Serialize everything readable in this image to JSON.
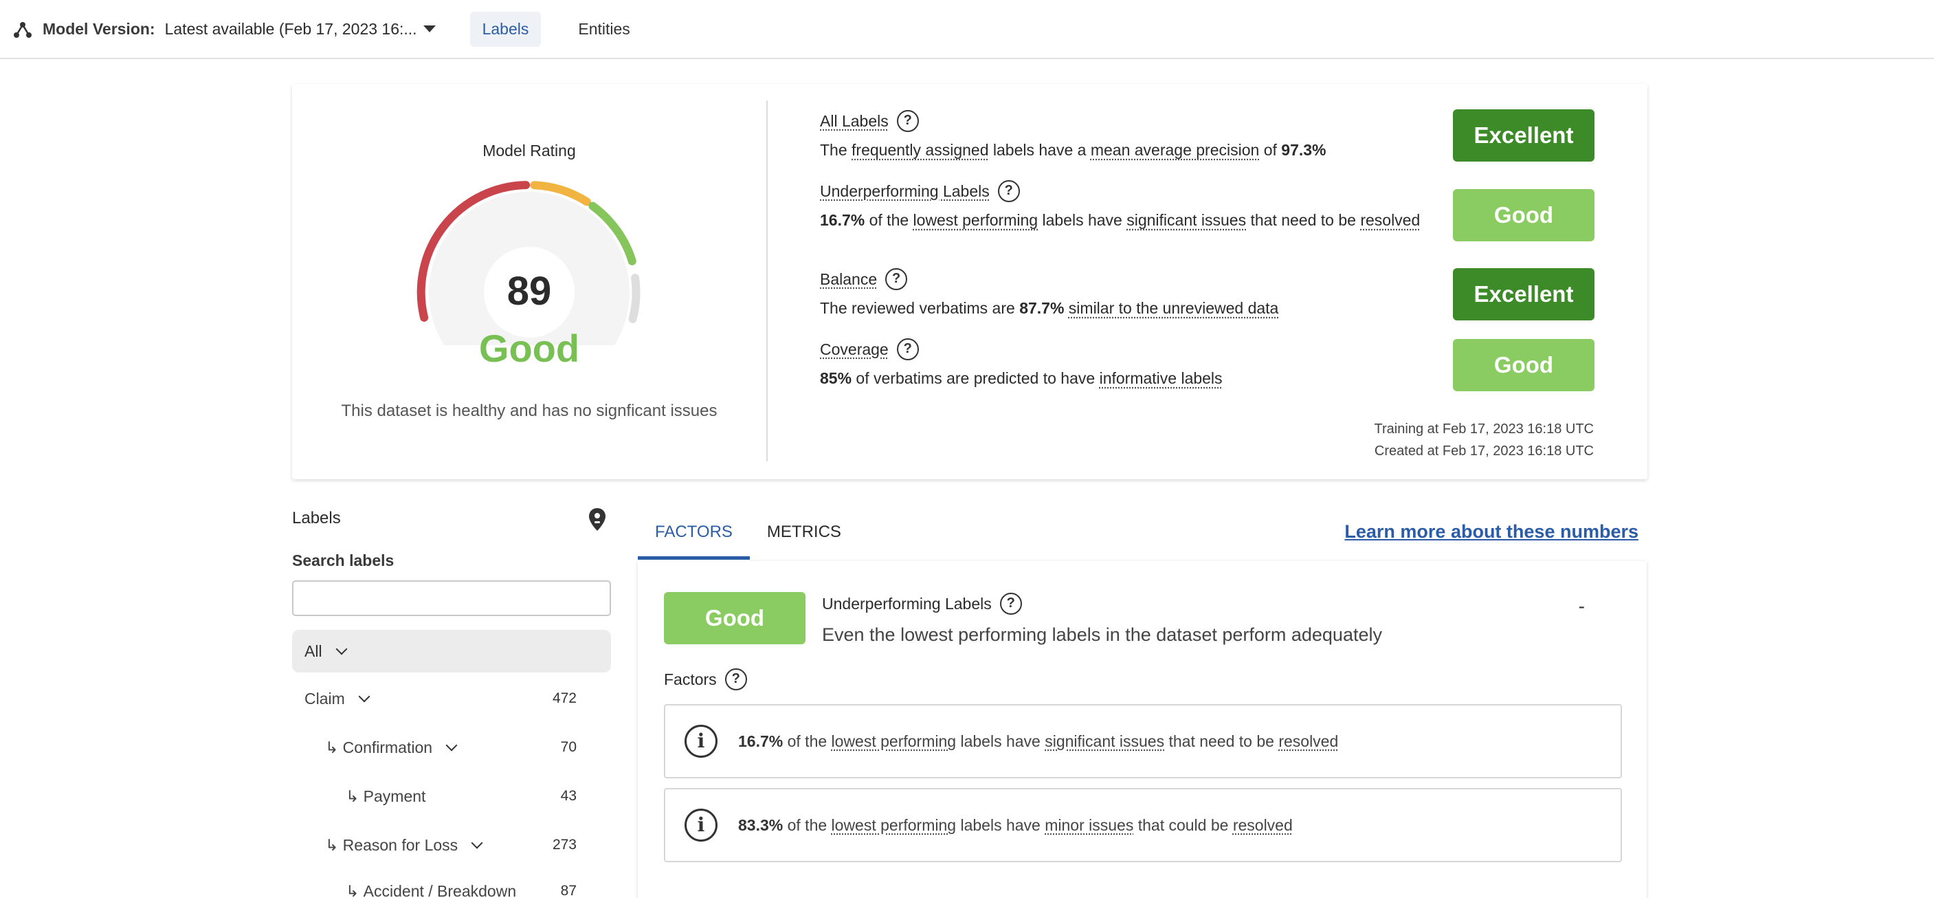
{
  "topbar": {
    "model_version_label": "Model Version:",
    "model_version_value": "Latest available (Feb 17, 2023 16:...",
    "tabs": [
      "Labels",
      "Entities"
    ]
  },
  "rating": {
    "title": "Model Rating",
    "score": "89",
    "word": "Good",
    "health_text": "This dataset is healthy and has no signficant issues"
  },
  "metrics": [
    {
      "title": "All Labels",
      "desc": [
        "The ",
        "frequently assigned",
        " labels have a ",
        "mean average precision",
        " of ",
        "97.3%"
      ],
      "badge": "Excellent"
    },
    {
      "title": "Underperforming Labels",
      "desc": [
        "16.7%",
        " of the ",
        "lowest performing",
        " labels have ",
        "significant issues",
        " that need to be ",
        "resolved"
      ],
      "badge": "Good"
    },
    {
      "title": "Balance",
      "desc": [
        "The reviewed verbatims are ",
        "87.7%",
        " ",
        "similar to the unreviewed data"
      ],
      "badge": "Excellent"
    },
    {
      "title": "Coverage",
      "desc": [
        "85%",
        " of verbatims are predicted to have ",
        "informative labels"
      ],
      "badge": "Good"
    }
  ],
  "times": {
    "training": "Training at Feb 17, 2023 16:18 UTC",
    "created": "Created at Feb 17, 2023 16:18 UTC"
  },
  "sidebar": {
    "title": "Labels",
    "search_title": "Search labels",
    "search_placeholder": "",
    "all_label": "All",
    "items": [
      {
        "name": "Claim",
        "count": "472",
        "prefix": "",
        "chevron": true
      },
      {
        "name": "Confirmation",
        "count": "70",
        "prefix": "↳ ",
        "chevron": true
      },
      {
        "name": "Payment",
        "count": "43",
        "prefix": "↳ ",
        "chevron": false
      },
      {
        "name": "Reason for Loss",
        "count": "273",
        "prefix": "↳ ",
        "chevron": true
      },
      {
        "name": "Accident / Breakdown",
        "count": "87",
        "prefix": "↳ ",
        "chevron": false
      }
    ]
  },
  "factors_panel": {
    "tabs": [
      "FACTORS",
      "METRICS"
    ],
    "learn_more": "Learn more about these numbers",
    "badge": "Good",
    "title": "Underperforming Labels",
    "subtitle": "Even the lowest performing labels in the dataset perform adequately",
    "dash": "-",
    "factors_heading": "Factors",
    "factors": [
      [
        "16.7%",
        " of the ",
        "lowest performing",
        " labels have ",
        "significant issues",
        " that need to be ",
        "resolved"
      ],
      [
        "83.3%",
        " of the ",
        "lowest performing",
        " labels have ",
        "minor issues",
        " that could be ",
        "resolved"
      ]
    ]
  },
  "colors": {
    "excellent": "#3d8b28",
    "good": "#8acb62",
    "accent": "#2a5ca8",
    "gauge_red": "#c9454b",
    "gauge_orange": "#f2b441",
    "gauge_green": "#86c45c",
    "gauge_grey": "#dedede"
  }
}
